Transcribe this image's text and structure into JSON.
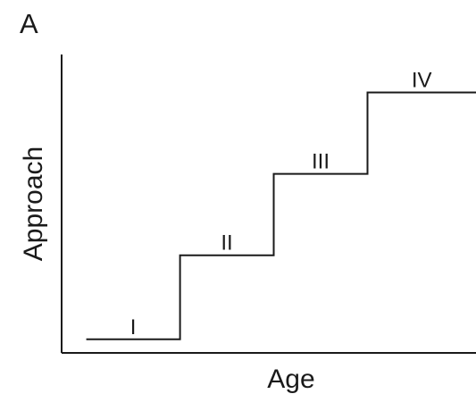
{
  "panel": {
    "label": "A"
  },
  "chart_data": {
    "type": "line",
    "title": "",
    "xlabel": "Age",
    "ylabel": "Approach",
    "x_ticks": false,
    "y_ticks": false,
    "grid": false,
    "legend": "none",
    "line_color": "#1a1a1a",
    "series": [
      {
        "points": [
          [
            0.05,
            0.05
          ],
          [
            0.24,
            0.05
          ],
          [
            0.24,
            0.36
          ],
          [
            0.43,
            0.36
          ],
          [
            0.43,
            0.66
          ],
          [
            0.62,
            0.66
          ],
          [
            0.62,
            0.96
          ],
          [
            0.84,
            0.96
          ]
        ]
      }
    ],
    "xlim": [
      0,
      0.84
    ],
    "ylim": [
      0,
      1.1
    ],
    "stages": [
      {
        "label": "I",
        "x": 0.145,
        "y": 0.05
      },
      {
        "label": "II",
        "x": 0.335,
        "y": 0.36
      },
      {
        "label": "III",
        "x": 0.525,
        "y": 0.66
      },
      {
        "label": "IV",
        "x": 0.73,
        "y": 0.96
      }
    ]
  }
}
